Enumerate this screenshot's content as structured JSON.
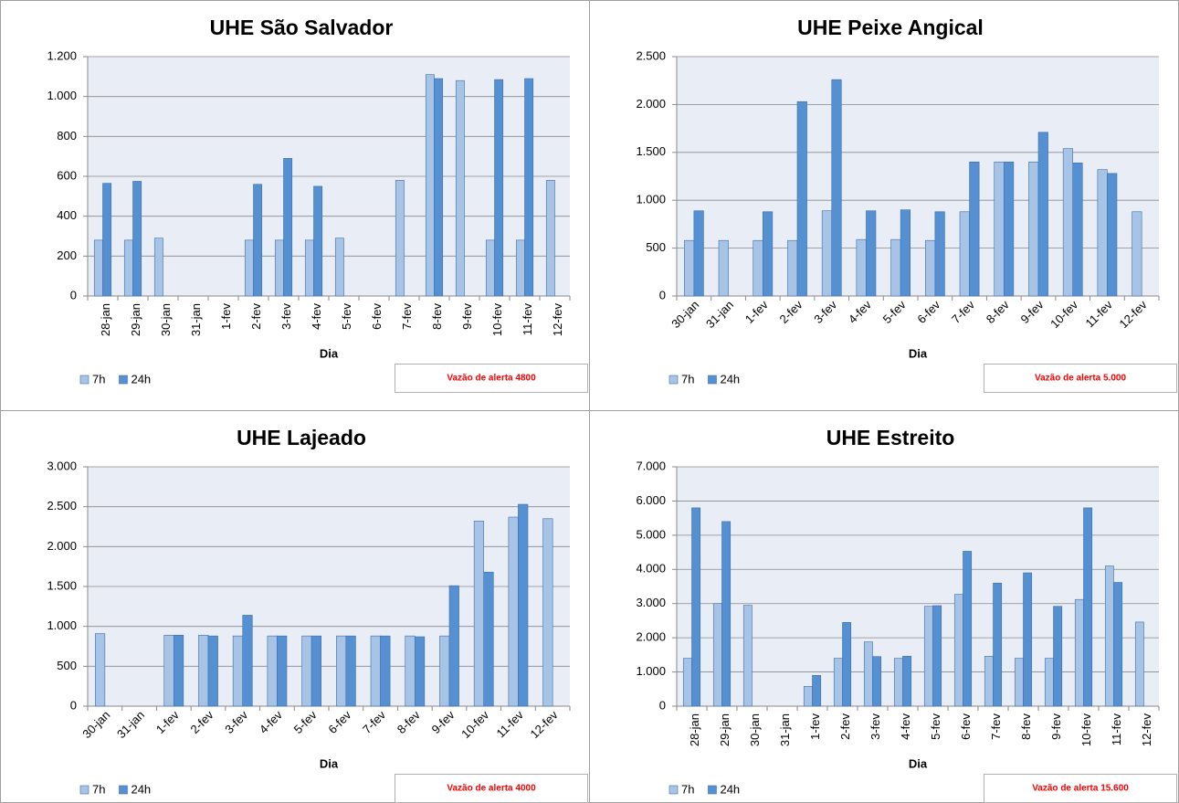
{
  "chart_data": [
    {
      "type": "bar",
      "title": "UHE São Salvador",
      "x_label": "Dia",
      "annotation": "Vazão de alerta 4800",
      "categories": [
        "28-jan",
        "29-jan",
        "30-jan",
        "31-jan",
        "1-fev",
        "2-fev",
        "3-fev",
        "4-fev",
        "5-fev",
        "6-fev",
        "7-fev",
        "8-fev",
        "9-fev",
        "10-fev",
        "11-fev",
        "12-fev"
      ],
      "series": [
        {
          "name": "7h",
          "color": "#a7c3e6",
          "values": [
            280,
            280,
            290,
            null,
            null,
            280,
            280,
            280,
            290,
            null,
            580,
            1110,
            1080,
            280,
            280,
            580
          ]
        },
        {
          "name": "24h",
          "color": "#5590d3",
          "values": [
            565,
            575,
            null,
            null,
            null,
            560,
            690,
            550,
            null,
            null,
            null,
            1090,
            null,
            1085,
            1090,
            null
          ]
        }
      ],
      "ylim": [
        0,
        1200
      ],
      "yticks": [
        0,
        200,
        400,
        600,
        800,
        {
          "value": 1000,
          "label": "1.000"
        },
        {
          "value": 1200,
          "label": "1.200"
        }
      ],
      "grid": true
    },
    {
      "type": "bar",
      "title": "UHE Peixe Angical",
      "x_label": "Dia",
      "annotation": "Vazão de alerta 5.000",
      "categories": [
        "30-jan",
        "31-jan",
        "1-fev",
        "2-fev",
        "3-fev",
        "4-fev",
        "5-fev",
        "6-fev",
        "7-fev",
        "8-fev",
        "9-fev",
        "10-fev",
        "11-fev",
        "12-fev"
      ],
      "series": [
        {
          "name": "7h",
          "color": "#a7c3e6",
          "values": [
            580,
            580,
            580,
            580,
            890,
            590,
            590,
            580,
            880,
            1400,
            1400,
            1540,
            1320,
            880
          ]
        },
        {
          "name": "24h",
          "color": "#5590d3",
          "values": [
            890,
            null,
            880,
            2030,
            2260,
            890,
            900,
            880,
            1400,
            1400,
            1710,
            1390,
            1280,
            null
          ]
        }
      ],
      "ylim": [
        0,
        2500
      ],
      "yticks": [
        0,
        500,
        {
          "value": 1000,
          "label": "1.000"
        },
        {
          "value": 1500,
          "label": "1.500"
        },
        {
          "value": 2000,
          "label": "2.000"
        },
        {
          "value": 2500,
          "label": "2.500"
        }
      ],
      "grid": true
    },
    {
      "type": "bar",
      "title": "UHE Lajeado",
      "x_label": "Dia",
      "annotation": "Vazão de alerta 4000",
      "categories": [
        "30-jan",
        "31-jan",
        "1-fev",
        "2-fev",
        "3-fev",
        "4-fev",
        "5-fev",
        "6-fev",
        "7-fev",
        "8-fev",
        "9-fev",
        "10-fev",
        "11-fev",
        "12-fev"
      ],
      "series": [
        {
          "name": "7h",
          "color": "#a7c3e6",
          "values": [
            910,
            null,
            890,
            890,
            880,
            880,
            880,
            880,
            880,
            880,
            880,
            2320,
            2370,
            2350
          ]
        },
        {
          "name": "24h",
          "color": "#5590d3",
          "values": [
            null,
            null,
            890,
            880,
            1140,
            880,
            880,
            880,
            880,
            870,
            1510,
            1680,
            2530,
            null
          ]
        }
      ],
      "ylim": [
        0,
        3000
      ],
      "yticks": [
        0,
        500,
        {
          "value": 1000,
          "label": "1.000"
        },
        {
          "value": 1500,
          "label": "1.500"
        },
        {
          "value": 2000,
          "label": "2.000"
        },
        {
          "value": 2500,
          "label": "2.500"
        },
        {
          "value": 3000,
          "label": "3.000"
        }
      ],
      "grid": true
    },
    {
      "type": "bar",
      "title": "UHE Estreito",
      "x_label": "Dia",
      "annotation": "Vazão de alerta 15.600",
      "categories": [
        "28-jan",
        "29-jan",
        "30-jan",
        "31-jan",
        "1-fev",
        "2-fev",
        "3-fev",
        "4-fev",
        "5-fev",
        "6-fev",
        "7-fev",
        "8-fev",
        "9-fev",
        "10-fev",
        "11-fev",
        "12-fev"
      ],
      "series": [
        {
          "name": "7h",
          "color": "#a7c3e6",
          "values": [
            1400,
            3000,
            2950,
            null,
            580,
            1400,
            1880,
            1400,
            2920,
            3270,
            1460,
            1400,
            1400,
            3120,
            4100,
            2460
          ]
        },
        {
          "name": "24h",
          "color": "#5590d3",
          "values": [
            5800,
            5400,
            null,
            null,
            900,
            2450,
            1450,
            1460,
            2940,
            4530,
            3600,
            3900,
            2920,
            5800,
            3620,
            null
          ]
        }
      ],
      "ylim": [
        0,
        7000
      ],
      "yticks": [
        0,
        {
          "value": 1000,
          "label": "1.000"
        },
        {
          "value": 2000,
          "label": "2.000"
        },
        {
          "value": 3000,
          "label": "3.000"
        },
        {
          "value": 4000,
          "label": "4.000"
        },
        {
          "value": 5000,
          "label": "5.000"
        },
        {
          "value": 6000,
          "label": "6.000"
        },
        {
          "value": 7000,
          "label": "7.000"
        }
      ],
      "grid": true
    }
  ]
}
